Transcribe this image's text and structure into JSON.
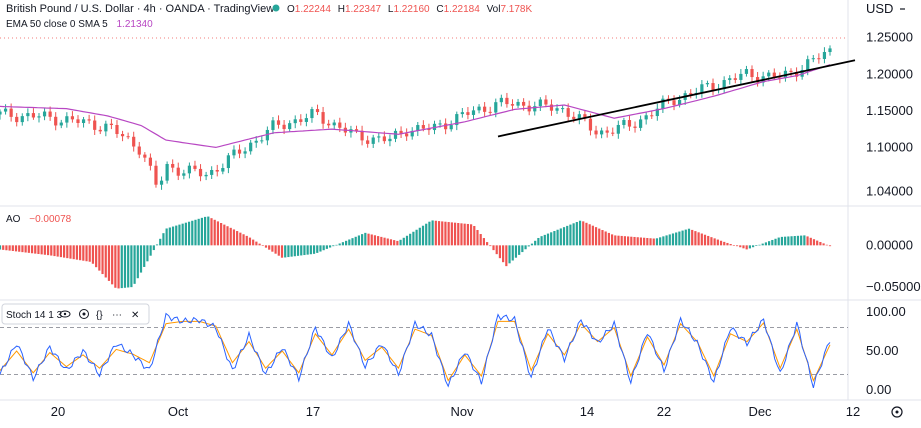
{
  "header": {
    "symbol_title": "British Pound / U.S. Dollar · 4h · OANDA · TradingView",
    "ohlc": [
      {
        "key": "O",
        "value": "1.22244"
      },
      {
        "key": "H",
        "value": "1.22347"
      },
      {
        "key": "L",
        "value": "1.22160"
      },
      {
        "key": "C",
        "value": "1.22184"
      }
    ],
    "volume": {
      "key": "Vol",
      "value": "7.178K"
    },
    "currency": "USD",
    "ema_label": "EMA 50 close 0 SMA 5",
    "ema_value": "1.21340"
  },
  "ao_panel": {
    "label": "AO",
    "value": "−0.00078"
  },
  "stoch_panel": {
    "label": "Stoch 14 1 3"
  },
  "x_ticks": [
    "20",
    "Oct",
    "17",
    "Nov",
    "14",
    "22",
    "Dec",
    "12"
  ],
  "colors": {
    "up": "#26a69a",
    "down": "#ef5350",
    "ema": "#b847c3",
    "k_line": "#2962ff",
    "d_line": "#ff9800"
  },
  "chart_data": [
    {
      "type": "line",
      "title": "British Pound / U.S. Dollar · 4h · OANDA · TradingView",
      "ylabel": "USD",
      "yticks": [
        "1.25000",
        "1.20000",
        "1.15000",
        "1.10000",
        "1.04000"
      ],
      "ylim": [
        1.035,
        1.255
      ],
      "x_categories": [
        "20",
        "Oct",
        "17",
        "Nov",
        "14",
        "22",
        "Dec"
      ],
      "series": [
        {
          "name": "Price",
          "x": [
            0,
            5,
            9,
            13,
            17,
            19,
            20,
            22,
            25,
            29,
            33,
            38,
            43,
            47,
            49,
            52,
            56,
            60,
            64,
            68,
            72,
            76,
            81,
            86,
            90,
            94,
            97,
            100
          ],
          "values": [
            1.145,
            1.142,
            1.136,
            1.128,
            1.098,
            1.042,
            1.075,
            1.068,
            1.063,
            1.095,
            1.128,
            1.145,
            1.115,
            1.11,
            1.125,
            1.125,
            1.145,
            1.16,
            1.158,
            1.152,
            1.12,
            1.13,
            1.165,
            1.185,
            1.2,
            1.195,
            1.212,
            1.232
          ]
        },
        {
          "name": "EMA 50 close 0 SMA 5",
          "x": [
            0,
            8,
            13,
            17,
            20,
            26,
            33,
            40,
            48,
            56,
            62,
            68,
            74,
            80,
            86,
            92,
            96,
            100
          ],
          "values": [
            1.156,
            1.153,
            1.143,
            1.13,
            1.11,
            1.1,
            1.12,
            1.125,
            1.118,
            1.135,
            1.152,
            1.158,
            1.14,
            1.153,
            1.17,
            1.19,
            1.198,
            1.213
          ]
        },
        {
          "name": "Trendline",
          "x": [
            60,
            100
          ],
          "values": [
            1.115,
            1.215
          ]
        }
      ]
    },
    {
      "type": "bar",
      "title": "AO",
      "yticks": [
        "0.00000",
        "−0.05000"
      ],
      "ylim": [
        -0.062,
        0.04
      ],
      "x": [
        0,
        6,
        11,
        14,
        16,
        20,
        25,
        30,
        34,
        38,
        44,
        48,
        52,
        57,
        61,
        65,
        70,
        74,
        79,
        83,
        87,
        90,
        94,
        97,
        100
      ],
      "values": [
        -0.005,
        -0.012,
        -0.02,
        -0.052,
        -0.05,
        0.02,
        0.035,
        0.01,
        -0.015,
        -0.01,
        0.015,
        0.005,
        0.03,
        0.025,
        -0.025,
        0.01,
        0.03,
        0.012,
        0.008,
        0.02,
        0.005,
        -0.005,
        0.01,
        0.012,
        -0.001
      ]
    },
    {
      "type": "line",
      "title": "Stoch 14 1 3",
      "yticks": [
        "100.00",
        "50.00",
        "0.00"
      ],
      "ylim": [
        0,
        100
      ],
      "bands": [
        80,
        20
      ],
      "series": [
        {
          "name": "%K",
          "x": [
            0,
            2,
            4,
            6,
            8,
            10,
            12,
            14,
            16,
            18,
            20,
            22,
            24,
            26,
            28,
            30,
            32,
            34,
            36,
            38,
            40,
            42,
            44,
            46,
            48,
            50,
            52,
            54,
            56,
            58,
            60,
            62,
            64,
            66,
            68,
            70,
            72,
            74,
            76,
            78,
            80,
            82,
            84,
            86,
            88,
            90,
            92,
            94,
            96,
            98,
            100
          ],
          "values": [
            20,
            60,
            15,
            55,
            25,
            50,
            20,
            60,
            45,
            25,
            95,
            88,
            90,
            80,
            25,
            70,
            20,
            55,
            15,
            80,
            40,
            85,
            30,
            60,
            20,
            85,
            70,
            5,
            50,
            10,
            95,
            90,
            15,
            80,
            40,
            90,
            60,
            85,
            10,
            75,
            25,
            90,
            60,
            10,
            80,
            60,
            90,
            20,
            85,
            5,
            65
          ]
        },
        {
          "name": "%D",
          "x": [
            0,
            2,
            4,
            6,
            8,
            10,
            12,
            14,
            16,
            18,
            20,
            22,
            24,
            26,
            28,
            30,
            32,
            34,
            36,
            38,
            40,
            42,
            44,
            46,
            48,
            50,
            52,
            54,
            56,
            58,
            60,
            62,
            64,
            66,
            68,
            70,
            72,
            74,
            76,
            78,
            80,
            82,
            84,
            86,
            88,
            90,
            92,
            94,
            96,
            98,
            100
          ],
          "values": [
            25,
            50,
            22,
            48,
            30,
            45,
            28,
            52,
            46,
            35,
            85,
            88,
            88,
            82,
            35,
            62,
            28,
            50,
            22,
            72,
            45,
            78,
            38,
            55,
            28,
            78,
            70,
            12,
            45,
            18,
            88,
            88,
            25,
            72,
            45,
            85,
            62,
            80,
            18,
            68,
            32,
            85,
            62,
            18,
            72,
            62,
            86,
            28,
            78,
            12,
            58
          ]
        }
      ]
    }
  ]
}
